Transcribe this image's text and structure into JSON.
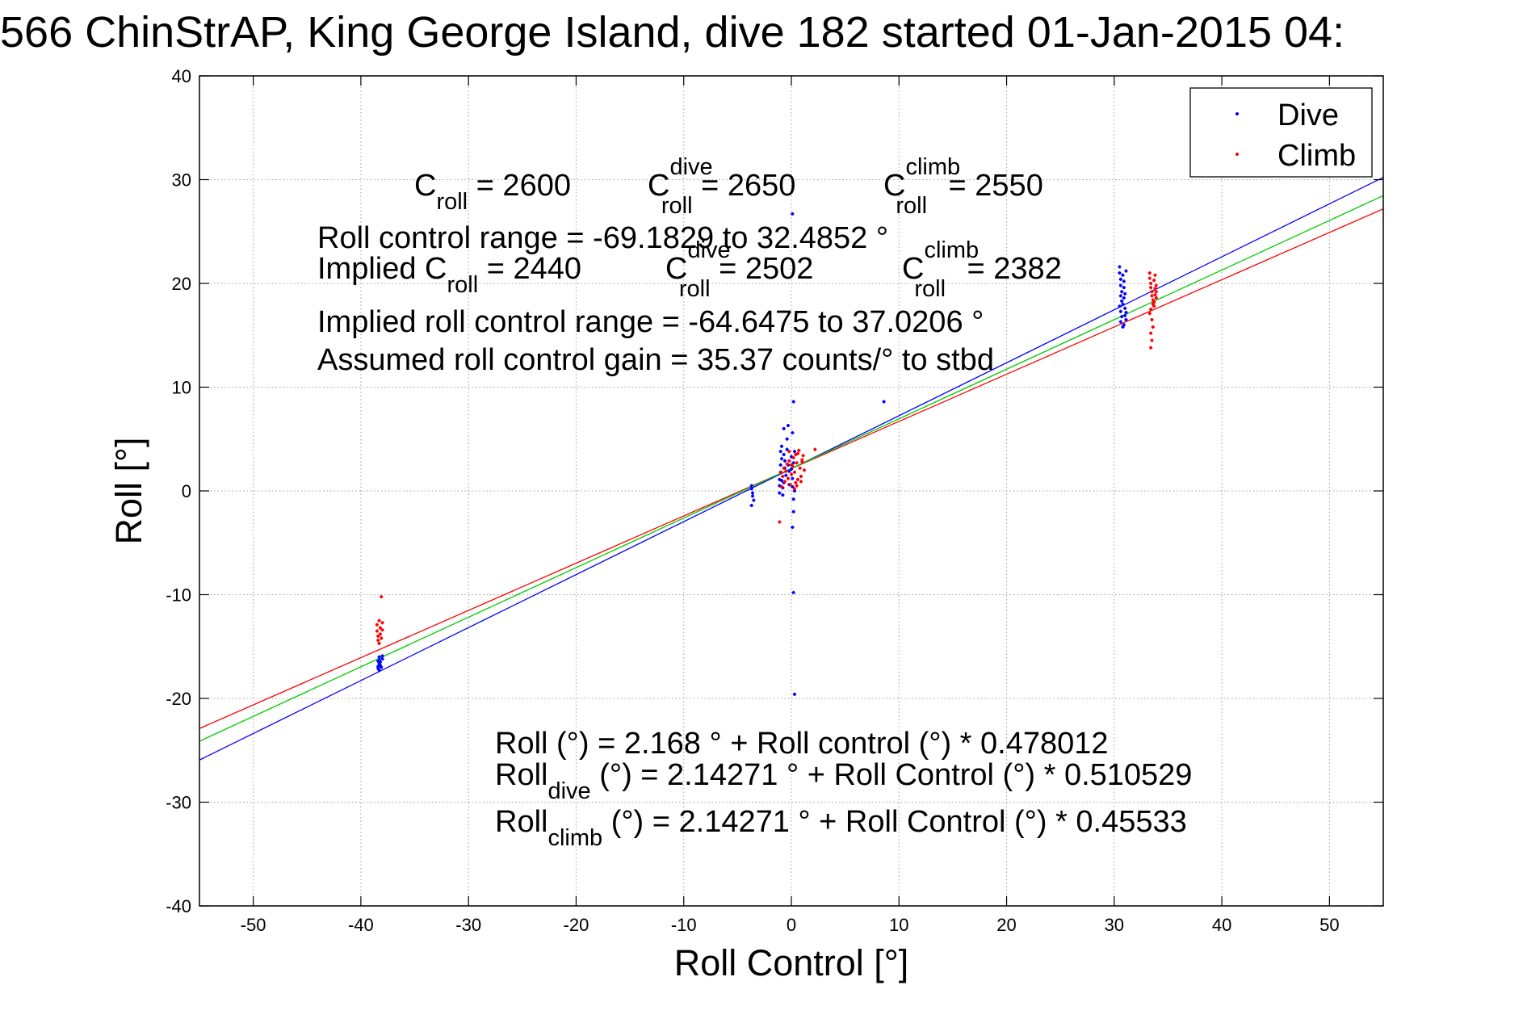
{
  "chart_data": {
    "type": "scatter",
    "title": "566 ChinStrAP, King George Island, dive 182 started 01-Jan-2015 04:",
    "xlabel": "Roll Control [°]",
    "ylabel": "Roll [°]",
    "xlim": [
      -55,
      55
    ],
    "ylim": [
      -40,
      40
    ],
    "grid": true,
    "legend_position": "top-right",
    "x_ticks": [
      -50,
      -40,
      -30,
      -20,
      -10,
      0,
      10,
      20,
      30,
      40,
      50
    ],
    "y_ticks": [
      -40,
      -30,
      -20,
      -10,
      0,
      10,
      20,
      30,
      40
    ],
    "colors": {
      "dive": "#0000ff",
      "climb": "#ff0000",
      "combined_fit": "#00cc00",
      "axes": "#000000",
      "grid": "#a0a0a0"
    },
    "legend": [
      {
        "label": "Dive",
        "color": "#0000ff"
      },
      {
        "label": "Climb",
        "color": "#ff0000"
      }
    ],
    "series": [
      {
        "name": "Dive",
        "color": "#0000ff",
        "points": [
          [
            -38.3,
            -16.0
          ],
          [
            -38.3,
            -16.3
          ],
          [
            -38.3,
            -16.6
          ],
          [
            -38.4,
            -16.9
          ],
          [
            -38.4,
            -17.1
          ],
          [
            -38.3,
            -17.3
          ],
          [
            -38.2,
            -16.5
          ],
          [
            -38.2,
            -16.8
          ],
          [
            -38.1,
            -17.0
          ],
          [
            -38.0,
            -16.2
          ],
          [
            -38.0,
            -15.9
          ],
          [
            -38.4,
            -16.4
          ],
          [
            -3.7,
            0.5
          ],
          [
            -3.7,
            0.2
          ],
          [
            -3.6,
            -0.2
          ],
          [
            -3.6,
            -0.5
          ],
          [
            -3.5,
            -0.9
          ],
          [
            -3.7,
            -1.4
          ],
          [
            -1.1,
            -0.2
          ],
          [
            -1.1,
            0.5
          ],
          [
            -1.1,
            1.1
          ],
          [
            -1.0,
            1.8
          ],
          [
            -1.0,
            2.5
          ],
          [
            -0.9,
            3.1
          ],
          [
            -1.0,
            3.8
          ],
          [
            -0.9,
            4.3
          ],
          [
            -0.9,
            1.0
          ],
          [
            -0.8,
            0.3
          ],
          [
            -0.8,
            -0.4
          ],
          [
            -0.6,
            2.2
          ],
          [
            -0.6,
            2.9
          ],
          [
            -0.7,
            0.8
          ],
          [
            -0.5,
            1.5
          ],
          [
            -0.7,
            3.5
          ],
          [
            -0.4,
            4.0
          ],
          [
            -0.4,
            5.0
          ],
          [
            -0.3,
            2.5
          ],
          [
            -0.2,
            0.6
          ],
          [
            -0.2,
            1.9
          ],
          [
            0.0,
            3.3
          ],
          [
            0.0,
            2.1
          ],
          [
            0.1,
            0.4
          ],
          [
            0.1,
            1.2
          ],
          [
            0.2,
            -0.8
          ],
          [
            0.2,
            -2.0
          ],
          [
            0.2,
            2.7
          ],
          [
            0.3,
            0.0
          ],
          [
            -0.7,
            6.0
          ],
          [
            -0.3,
            6.3
          ],
          [
            0.1,
            5.6
          ],
          [
            0.2,
            8.6
          ],
          [
            0.3,
            3.8
          ],
          [
            0.1,
            26.7
          ],
          [
            0.1,
            -3.5
          ],
          [
            0.2,
            -9.8
          ],
          [
            0.3,
            -19.6
          ],
          [
            8.6,
            8.6
          ],
          [
            30.5,
            21.6
          ],
          [
            30.5,
            21.0
          ],
          [
            30.6,
            20.4
          ],
          [
            30.6,
            19.8
          ],
          [
            30.7,
            19.2
          ],
          [
            30.6,
            18.8
          ],
          [
            30.7,
            18.3
          ],
          [
            30.5,
            17.8
          ],
          [
            30.6,
            17.3
          ],
          [
            30.7,
            16.8
          ],
          [
            30.6,
            16.3
          ],
          [
            30.8,
            15.8
          ],
          [
            30.8,
            20.8
          ],
          [
            30.9,
            19.6
          ],
          [
            30.9,
            18.6
          ],
          [
            31.0,
            17.6
          ],
          [
            31.0,
            16.9
          ],
          [
            31.1,
            17.2
          ],
          [
            31.1,
            16.5
          ],
          [
            30.9,
            20.2
          ],
          [
            31.0,
            19.0
          ],
          [
            30.8,
            18.0
          ],
          [
            31.1,
            21.2
          ],
          [
            30.9,
            16.0
          ]
        ]
      },
      {
        "name": "Climb",
        "color": "#ff0000",
        "points": [
          [
            -38.5,
            -12.9
          ],
          [
            -38.5,
            -13.5
          ],
          [
            -38.4,
            -14.0
          ],
          [
            -38.4,
            -14.4
          ],
          [
            -38.3,
            -14.7
          ],
          [
            -38.2,
            -13.2
          ],
          [
            -38.2,
            -13.8
          ],
          [
            -38.1,
            -14.2
          ],
          [
            -38.0,
            -12.7
          ],
          [
            -38.0,
            -13.4
          ],
          [
            -38.1,
            -10.2
          ],
          [
            -38.3,
            -12.5
          ],
          [
            -1.1,
            -3.0
          ],
          [
            -1.0,
            1.8
          ],
          [
            -0.9,
            0.4
          ],
          [
            -0.8,
            1.4
          ],
          [
            -0.7,
            2.2
          ],
          [
            -0.6,
            0.9
          ],
          [
            -0.5,
            1.9
          ],
          [
            -0.4,
            2.6
          ],
          [
            -0.3,
            1.2
          ],
          [
            -0.2,
            2.9
          ],
          [
            -0.1,
            0.6
          ],
          [
            0.0,
            1.6
          ],
          [
            0.1,
            2.4
          ],
          [
            0.2,
            3.2
          ],
          [
            0.3,
            1.8
          ],
          [
            0.4,
            3.5
          ],
          [
            0.5,
            2.7
          ],
          [
            0.6,
            1.1
          ],
          [
            0.7,
            3.9
          ],
          [
            0.8,
            2.2
          ],
          [
            0.9,
            1.4
          ],
          [
            1.0,
            2.8
          ],
          [
            1.1,
            3.4
          ],
          [
            1.2,
            2.0
          ],
          [
            0.3,
            0.2
          ],
          [
            0.5,
            0.5
          ],
          [
            0.9,
            0.9
          ],
          [
            1.0,
            3.0
          ],
          [
            0.6,
            3.6
          ],
          [
            0.0,
            2.5
          ],
          [
            -0.2,
            3.8
          ],
          [
            0.4,
            0.8
          ],
          [
            2.2,
            4.0
          ],
          [
            33.3,
            21.0
          ],
          [
            33.3,
            20.5
          ],
          [
            33.4,
            20.0
          ],
          [
            33.4,
            19.6
          ],
          [
            33.5,
            19.2
          ],
          [
            33.5,
            18.8
          ],
          [
            33.6,
            18.4
          ],
          [
            33.6,
            18.0
          ],
          [
            33.4,
            17.5
          ],
          [
            33.3,
            17.1
          ],
          [
            33.5,
            16.5
          ],
          [
            33.6,
            15.8
          ],
          [
            33.4,
            15.2
          ],
          [
            33.5,
            14.5
          ],
          [
            33.4,
            13.8
          ],
          [
            33.7,
            20.3
          ],
          [
            33.8,
            19.5
          ],
          [
            33.8,
            18.9
          ],
          [
            33.9,
            19.8
          ],
          [
            33.9,
            18.6
          ],
          [
            33.7,
            17.8
          ],
          [
            33.8,
            20.8
          ],
          [
            33.9,
            19.2
          ],
          [
            33.7,
            18.2
          ]
        ]
      }
    ],
    "fit_lines": [
      {
        "name": "Dive",
        "color": "#0000ff",
        "intercept": 2.14271,
        "slope": 0.510529
      },
      {
        "name": "Climb",
        "color": "#ff0000",
        "intercept": 2.14271,
        "slope": 0.45533
      },
      {
        "name": "Combined",
        "color": "#00cc00",
        "intercept": 2.168,
        "slope": 0.478012
      }
    ],
    "annotations": {
      "c_roll_row": [
        {
          "base": "C",
          "sub": "roll",
          "sup": "",
          "rest": " = 2600"
        },
        {
          "base": "C",
          "sub": "roll",
          "sup": "dive",
          "rest": " = 2650"
        },
        {
          "base": "C",
          "sub": "roll",
          "sup": "climb",
          "rest": " = 2550"
        }
      ],
      "roll_control_range": "Roll control range = -69.1829 to 32.4852 °",
      "implied_row": [
        {
          "base": "Implied C",
          "sub": "roll",
          "sup": "",
          "rest": " = 2440"
        },
        {
          "base": "C",
          "sub": "roll",
          "sup": "dive",
          "rest": " = 2502"
        },
        {
          "base": "C",
          "sub": "roll",
          "sup": "climb",
          "rest": " = 2382"
        }
      ],
      "implied_range": "Implied roll control range = -64.6475 to 37.0206 °",
      "gain": "Assumed roll control gain = 35.37 counts/° to stbd",
      "equations": [
        {
          "base": "Roll",
          "sub": "",
          "rest": " (°) = 2.168 ° + Roll control (°) * 0.478012"
        },
        {
          "base": "Roll",
          "sub": "dive",
          "rest": " (°) = 2.14271 ° + Roll Control (°) * 0.510529"
        },
        {
          "base": "Roll",
          "sub": "climb",
          "rest": " (°) = 2.14271 ° + Roll Control (°) * 0.45533"
        }
      ]
    }
  }
}
